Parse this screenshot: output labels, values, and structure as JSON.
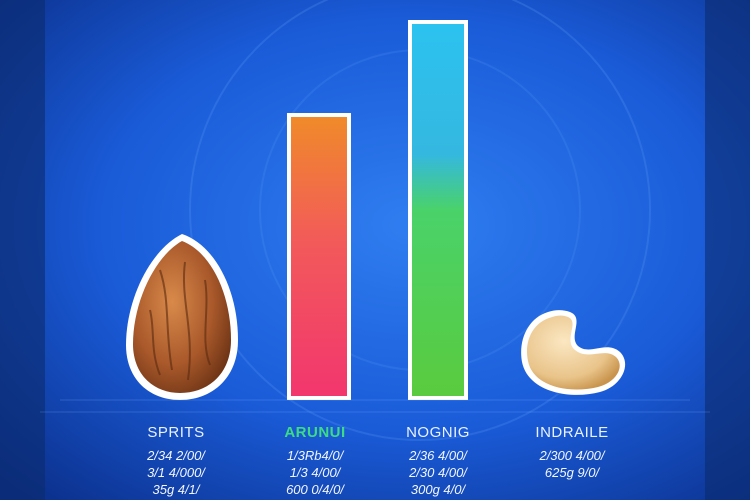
{
  "columns": [
    {
      "title": "SPRITS",
      "lines": [
        "2/34 2/00/",
        "3/1 4/000/",
        "35g 4/1/"
      ]
    },
    {
      "title": "ARUNUI",
      "lines": [
        "1/3Rb4/0/",
        "1/3 4/00/",
        "600 0/4/0/"
      ]
    },
    {
      "title": "NOGNIG",
      "lines": [
        "2/36 4/00/",
        "2/30 4/00/",
        "300g 4/0/"
      ]
    },
    {
      "title": "INDRAILE",
      "lines": [
        "2/300 4/00/",
        "625g 9/0/"
      ]
    }
  ]
}
